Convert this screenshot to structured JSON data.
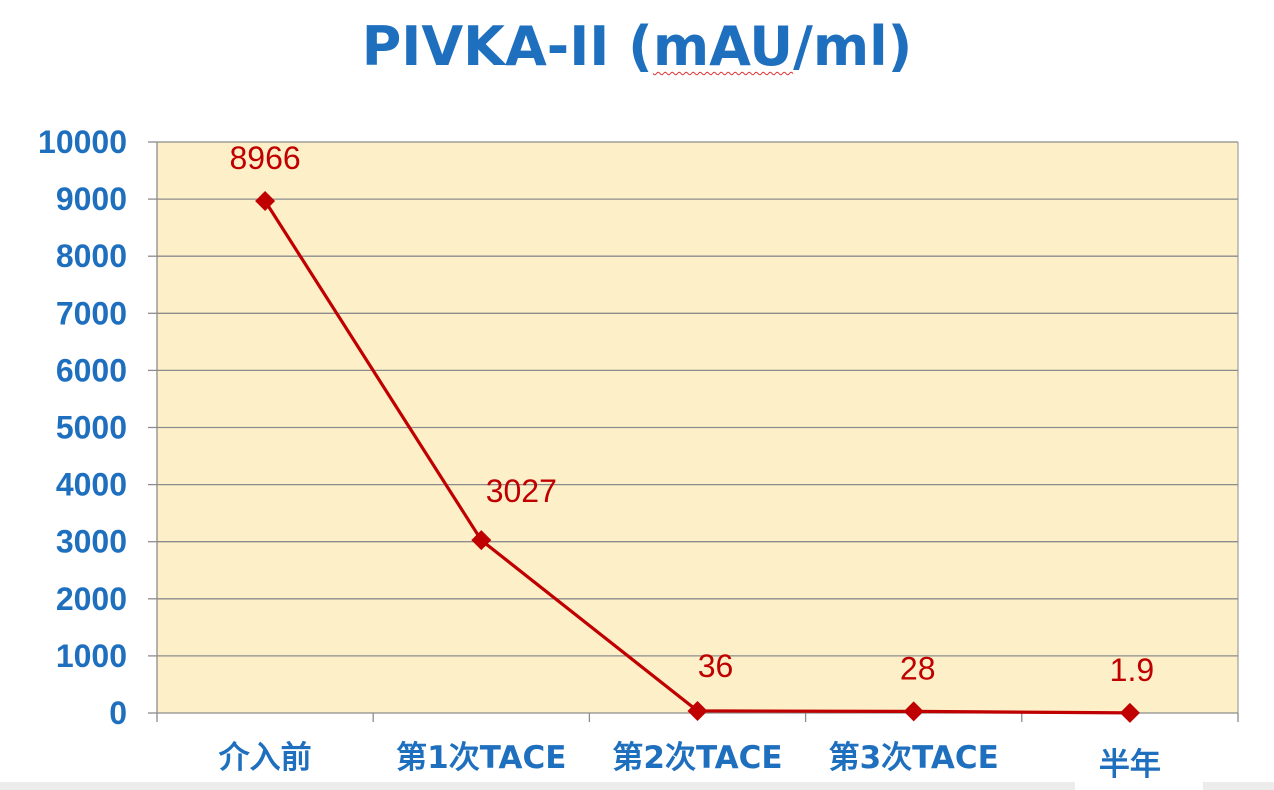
{
  "chart_data": {
    "type": "line",
    "title_parts": {
      "pre": "PIVKA-II (",
      "mid": "mAU",
      "post": "/ml)"
    },
    "categories": [
      "介入前",
      "第1次TACE",
      "第2次TACE",
      "第3次TACE",
      "半年"
    ],
    "series": [
      {
        "values": [
          8966,
          3027,
          36,
          28,
          1.9
        ],
        "color": "#c00000"
      }
    ],
    "data_labels": [
      "8966",
      "3027",
      "36",
      "28",
      "1.9"
    ],
    "y_ticks": [
      "0",
      "1000",
      "2000",
      "3000",
      "4000",
      "5000",
      "6000",
      "7000",
      "8000",
      "9000",
      "10000"
    ],
    "ylim": [
      0,
      10000
    ],
    "grid": true,
    "legend": "none",
    "colors": {
      "title": "#1f6fbf",
      "axis_labels": "#1f6fbf",
      "plot_background": "#fdf0c8",
      "gridline": "#8c8c8c",
      "series": "#c00000",
      "data_labels": "#c00000"
    }
  }
}
